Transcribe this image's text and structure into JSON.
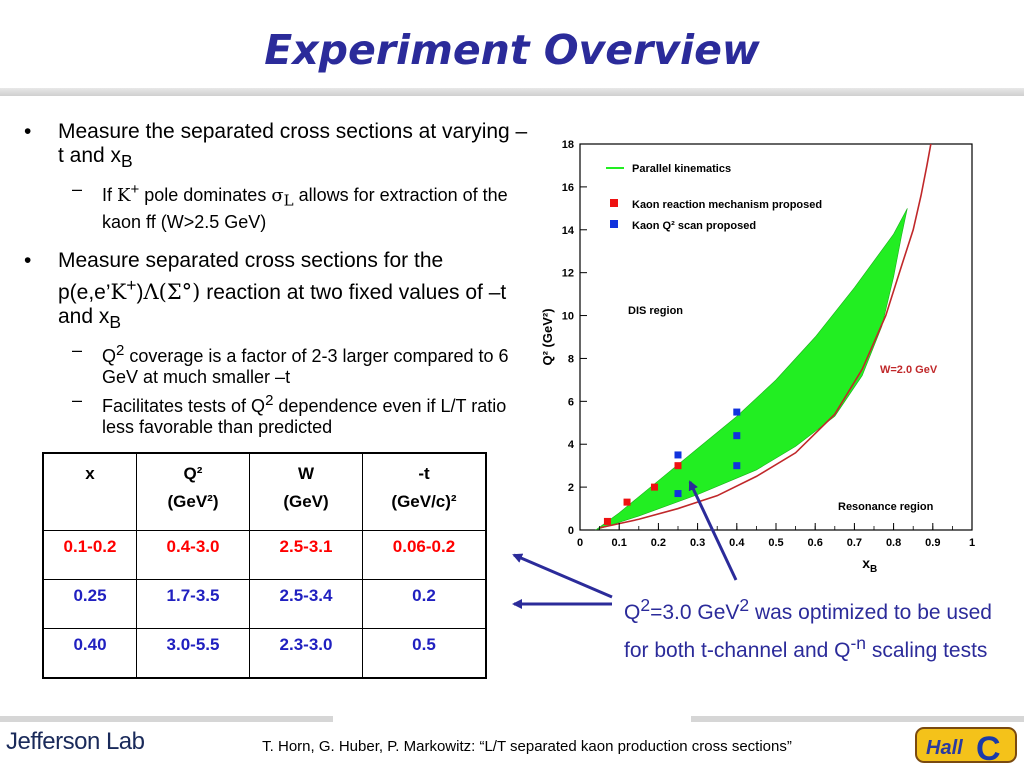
{
  "title": "Experiment Overview",
  "bullets": {
    "b1_text": "Measure the separated cross sections at varying –t and x",
    "b1_sub": "B",
    "b1a_if": "If ",
    "b1a_kaon": "K",
    "b1a_plus": "+",
    "b1a_mid": " pole dominates ",
    "b1a_sigma": "σ",
    "b1a_L": "L",
    "b1a_rest": " allows for extraction of the kaon ff (W>2.5 GeV)",
    "b2_pre": "Measure separated cross sections for the p(e,e’",
    "b2_kaon": "K",
    "b2_plus": "+",
    "b2_paren": ")",
    "b2_lambda": "Λ",
    "b2_sigma": "(Σ°)",
    "b2_post": " reaction at two fixed values of –t and x",
    "b2_sub": "B",
    "b2a_Q": "Q",
    "b2a_sup": "2",
    "b2a_rest": " coverage is a factor of 2-3 larger compared to 6 GeV at much smaller –t",
    "b2b_pre": "Facilitates tests of Q",
    "b2b_sup": "2",
    "b2b_rest": " dependence even if L/T ratio less favorable than predicted"
  },
  "table": {
    "headers": [
      {
        "l1": "x",
        "l2": ""
      },
      {
        "l1": "Q²",
        "l2": "(GeV²)"
      },
      {
        "l1": "W",
        "l2": "(GeV)"
      },
      {
        "l1": "-t",
        "l2": "(GeV/c)²"
      }
    ],
    "rows": [
      [
        "0.1-0.2",
        "0.4-3.0",
        "2.5-3.1",
        "0.06-0.2"
      ],
      [
        "0.25",
        "1.7-3.5",
        "2.5-3.4",
        "0.2"
      ],
      [
        "0.40",
        "3.0-5.5",
        "2.3-3.0",
        "0.5"
      ]
    ]
  },
  "callout": {
    "q": "Q",
    "s1": "2",
    "t1": "=3.0 GeV",
    "s2": "2",
    "t2": " was optimized to be used for both t-channel and Q",
    "s3": "-n",
    "t3": " scaling tests"
  },
  "colors": {
    "title": "#2b2b9a",
    "callout": "#2b2b9a",
    "green_region": "#22ee22",
    "w_curve": "#c0282a",
    "red_points": "#ee1111",
    "blue_points": "#1133dd"
  },
  "chart_data": {
    "type": "scatter",
    "xlabel": "x_B",
    "ylabel": "Q² (GeV²)",
    "xlim": [
      0,
      1
    ],
    "ylim": [
      0,
      18
    ],
    "xticks": [
      "0",
      "0.1",
      "0.2",
      "0.3",
      "0.4",
      "0.5",
      "0.6",
      "0.7",
      "0.8",
      "0.9",
      "1"
    ],
    "yticks": [
      "0",
      "2",
      "4",
      "6",
      "8",
      "10",
      "12",
      "14",
      "16",
      "18"
    ],
    "legend": [
      {
        "label": "Parallel kinematics",
        "marker": "line",
        "color": "#22ee22"
      },
      {
        "label": "Kaon reaction mechanism proposed",
        "marker": "square",
        "color": "#ee1111"
      },
      {
        "label": "Kaon Q² scan proposed",
        "marker": "square",
        "color": "#1133dd"
      }
    ],
    "legend_position": "top-left",
    "annotations": [
      "DIS region",
      "W=2.0 GeV",
      "Resonance region"
    ],
    "series": [
      {
        "name": "Kaon reaction mechanism proposed",
        "points": [
          [
            0.07,
            0.4
          ],
          [
            0.12,
            1.3
          ],
          [
            0.19,
            2.0
          ],
          [
            0.25,
            3.0
          ]
        ]
      },
      {
        "name": "Kaon Q² scan proposed",
        "points": [
          [
            0.25,
            1.7
          ],
          [
            0.25,
            3.5
          ],
          [
            0.4,
            3.0
          ],
          [
            0.4,
            4.4
          ],
          [
            0.4,
            5.5
          ]
        ]
      }
    ],
    "region": {
      "name": "Parallel kinematics",
      "lower": [
        [
          0.04,
          0
        ],
        [
          0.15,
          0.65
        ],
        [
          0.3,
          1.65
        ],
        [
          0.45,
          2.8
        ],
        [
          0.55,
          3.9
        ],
        [
          0.65,
          5.3
        ],
        [
          0.72,
          7.2
        ],
        [
          0.77,
          9.5
        ],
        [
          0.8,
          11.8
        ],
        [
          0.82,
          13.7
        ],
        [
          0.835,
          15.0
        ]
      ],
      "upper": [
        [
          0.04,
          0
        ],
        [
          0.1,
          0.8
        ],
        [
          0.2,
          2.3
        ],
        [
          0.3,
          3.8
        ],
        [
          0.4,
          5.3
        ],
        [
          0.5,
          7.0
        ],
        [
          0.6,
          9.0
        ],
        [
          0.7,
          11.3
        ],
        [
          0.8,
          13.8
        ],
        [
          0.835,
          15.0
        ]
      ]
    },
    "w_curve": {
      "name": "W=2.0 GeV",
      "x": [
        0.05,
        0.15,
        0.25,
        0.35,
        0.45,
        0.55,
        0.65,
        0.72,
        0.78,
        0.82,
        0.85,
        0.87,
        0.885,
        0.895
      ],
      "y": [
        0.1,
        0.5,
        1.0,
        1.6,
        2.5,
        3.6,
        5.4,
        7.5,
        10.0,
        12.3,
        14.0,
        15.6,
        17.0,
        18.0
      ]
    }
  },
  "footer": {
    "logo": "Jefferson Lab",
    "text": "T. Horn, G. Huber, P. Markowitz: “L/T separated kaon production cross sections”",
    "badge": "HallC"
  }
}
